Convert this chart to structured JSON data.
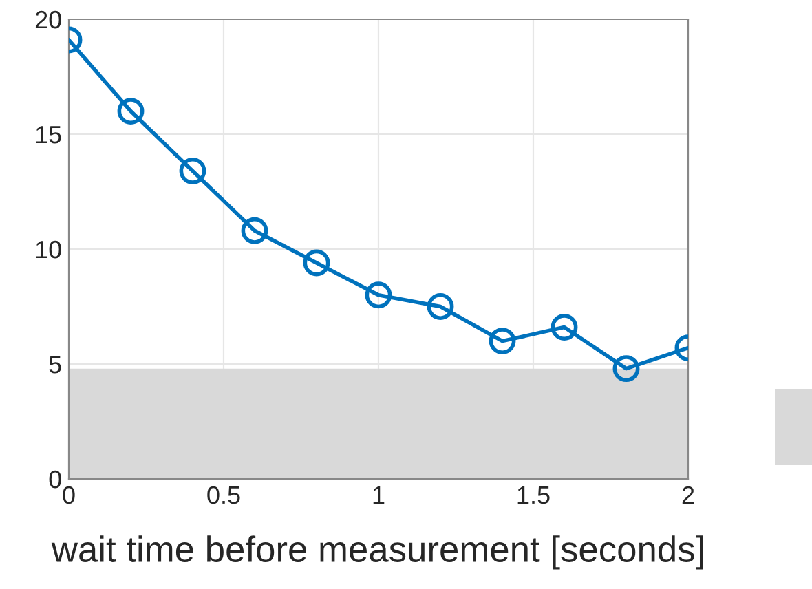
{
  "chart_data": {
    "type": "line",
    "xlabel": "wait time before measurement [seconds]",
    "x": [
      0,
      0.2,
      0.4,
      0.6,
      0.8,
      1.0,
      1.2,
      1.4,
      1.6,
      1.8,
      2.0
    ],
    "series": [
      {
        "color": "#0072bd",
        "values": [
          19.1,
          16.0,
          13.4,
          10.8,
          9.4,
          8.0,
          7.5,
          6.0,
          6.6,
          4.8,
          5.7
        ]
      }
    ],
    "marker": "circle",
    "line_style": "solid",
    "xlim": [
      0,
      2
    ],
    "ylim": [
      0,
      20
    ],
    "xticks": [
      0,
      0.5,
      1,
      1.5,
      2
    ],
    "yticks": [
      0,
      5,
      10,
      15,
      20
    ],
    "bands": [
      {
        "axis": "y",
        "from": 0,
        "to": 4.8,
        "color": "#d9d9d9"
      }
    ],
    "grid": true,
    "legend": false
  }
}
